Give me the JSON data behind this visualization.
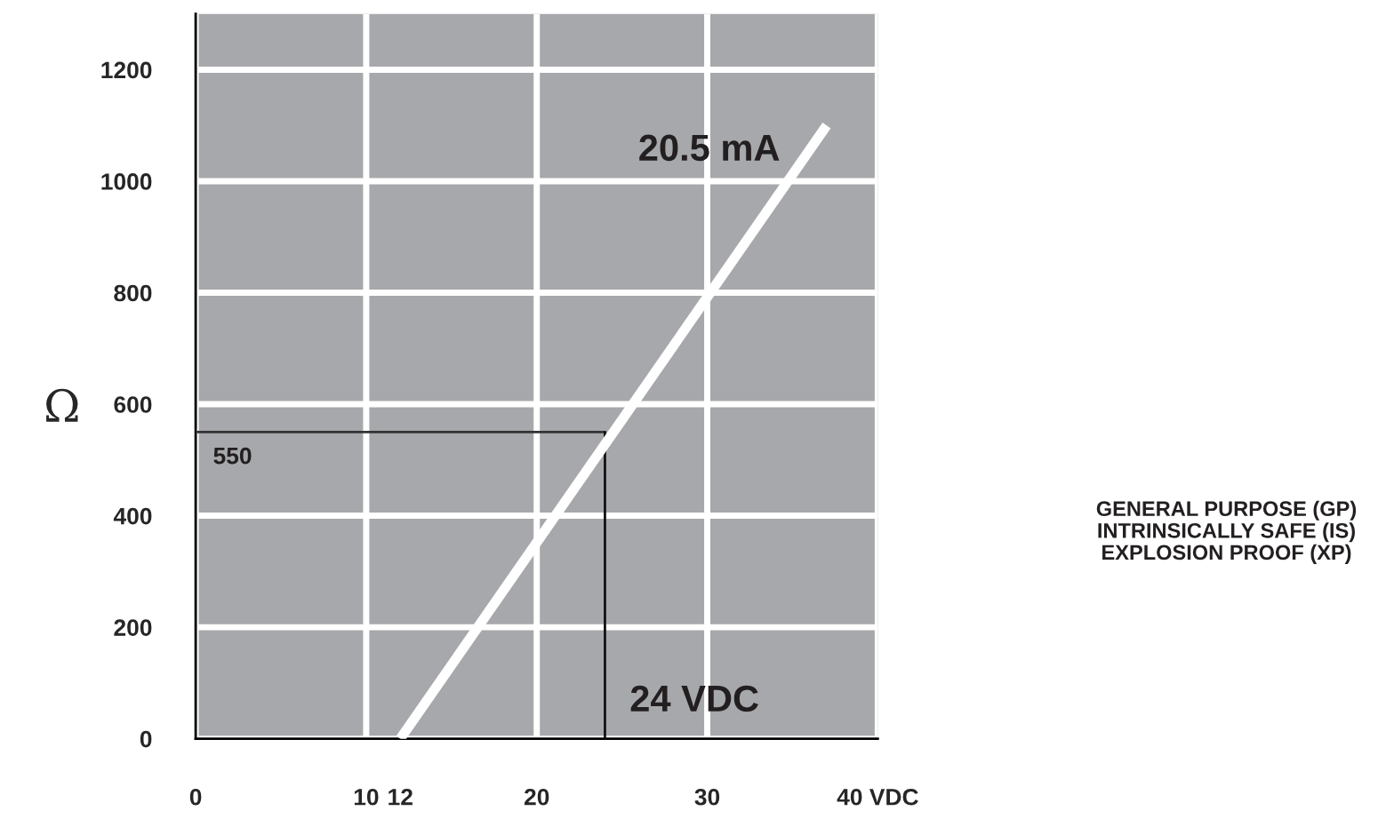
{
  "chart_data": {
    "type": "line",
    "ylabel": "Ω",
    "x": [
      12,
      37
    ],
    "series": [
      {
        "color": "#ffffff",
        "values": [
          0,
          1100
        ]
      }
    ],
    "xlim": [
      0,
      40
    ],
    "xticks": [
      0,
      10,
      {
        "value": 12,
        "label": "12"
      },
      20,
      30,
      {
        "value": 40,
        "label": "40 VDC"
      }
    ],
    "ylim": [
      0,
      1300
    ],
    "yticks": [
      0,
      200,
      400,
      600,
      800,
      1000,
      1200
    ],
    "grid": true,
    "marker": "none",
    "line_style": "solid",
    "ref_lines": [
      {
        "axis": "y",
        "value": 550,
        "label": "550",
        "color": "#333333"
      },
      {
        "axis": "x",
        "value": 24,
        "label": "24 VDC",
        "color": "#111111"
      }
    ],
    "annotations": [
      {
        "text": "20.5 mA",
        "x": 35,
        "y": 1010
      },
      "GENERAL PURPOSE (GP)\nINTRINSICALLY SAFE (IS)\nEXPLOSION PROOF (XP)"
    ]
  }
}
